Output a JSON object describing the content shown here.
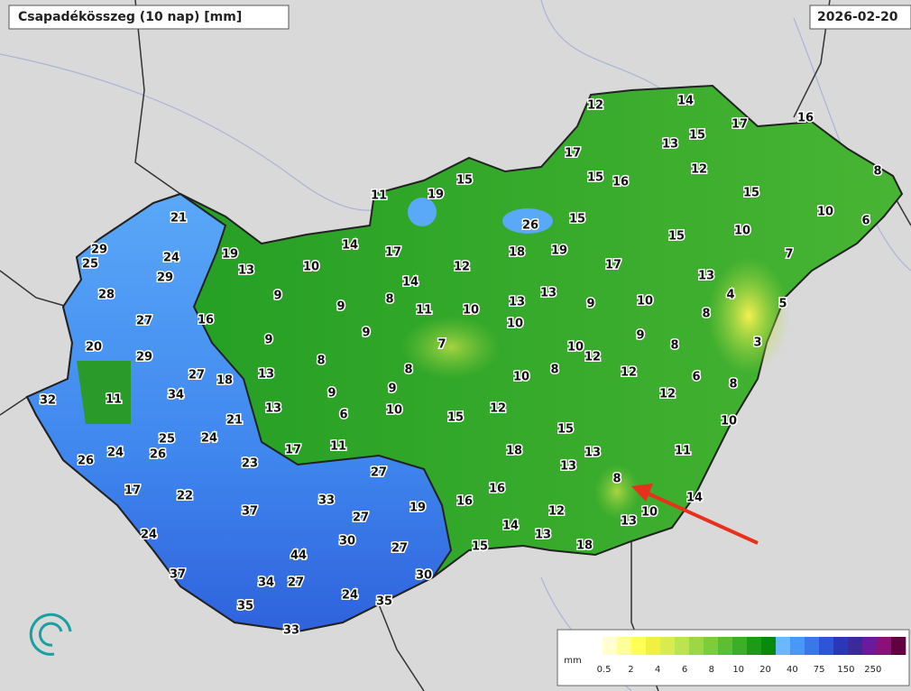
{
  "header": {
    "title": "Csapadékösszeg (10 nap) [mm]",
    "date": "2026-02-20"
  },
  "stations": [
    12,
    14,
    17,
    16,
    13,
    15,
    17,
    12,
    8,
    15,
    15,
    16,
    11,
    19,
    15,
    10,
    6,
    21,
    26,
    15,
    15,
    10,
    14,
    17,
    18,
    19,
    29,
    19,
    24,
    7,
    25,
    10,
    12,
    17,
    13,
    29,
    14,
    13,
    28,
    9,
    8,
    9,
    11,
    10,
    13,
    13,
    9,
    10,
    4,
    5,
    16,
    27,
    10,
    8,
    9,
    9,
    20,
    9,
    7,
    10,
    12,
    8,
    3,
    29,
    8,
    27,
    18,
    13,
    8,
    10,
    8,
    12,
    6,
    8,
    32,
    11,
    34,
    9,
    9,
    12,
    13,
    6,
    10,
    15,
    12,
    21,
    10,
    25,
    24,
    15,
    26,
    24,
    26,
    17,
    11,
    18,
    13,
    11,
    23,
    13,
    27,
    8,
    17,
    22,
    16,
    33,
    16,
    19,
    14,
    37,
    27,
    12,
    10,
    13,
    14,
    24,
    30,
    13,
    15,
    18,
    27,
    44,
    37,
    34,
    27,
    30,
    24,
    35,
    35,
    33
  ],
  "legend": {
    "unit": "mm",
    "labels": [
      0.5,
      2,
      4,
      6,
      8,
      10,
      20,
      40,
      75,
      150,
      250
    ],
    "colors": [
      "#ffffff",
      "#ffffd0",
      "#ffff99",
      "#ffff55",
      "#f0f040",
      "#d8ec50",
      "#bce450",
      "#9cd845",
      "#7ccc3c",
      "#5cbe32",
      "#3caf28",
      "#1d9a18",
      "#0a8a0a",
      "#6cb8ff",
      "#4a98f5",
      "#3a78ea",
      "#2c55d8",
      "#2a38b8",
      "#3a2a9a",
      "#6a1a9a",
      "#8a107a",
      "#600040"
    ]
  }
}
